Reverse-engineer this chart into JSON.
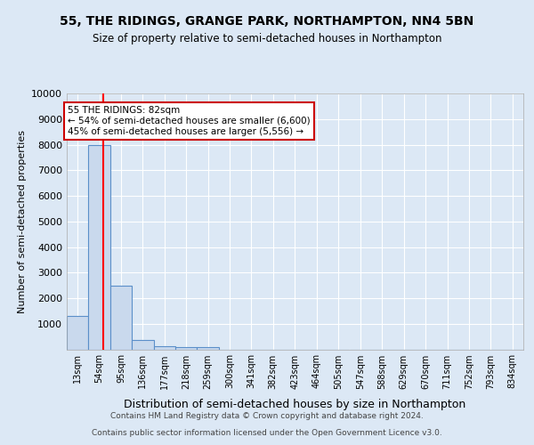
{
  "title1": "55, THE RIDINGS, GRANGE PARK, NORTHAMPTON, NN4 5BN",
  "title2": "Size of property relative to semi-detached houses in Northampton",
  "xlabel": "Distribution of semi-detached houses by size in Northampton",
  "ylabel": "Number of semi-detached properties",
  "footnote1": "Contains HM Land Registry data © Crown copyright and database right 2024.",
  "footnote2": "Contains public sector information licensed under the Open Government Licence v3.0.",
  "bar_labels": [
    "13sqm",
    "54sqm",
    "95sqm",
    "136sqm",
    "177sqm",
    "218sqm",
    "259sqm",
    "300sqm",
    "341sqm",
    "382sqm",
    "423sqm",
    "464sqm",
    "505sqm",
    "547sqm",
    "588sqm",
    "629sqm",
    "670sqm",
    "711sqm",
    "752sqm",
    "793sqm",
    "834sqm"
  ],
  "bar_values": [
    1300,
    8000,
    2500,
    380,
    130,
    100,
    100,
    0,
    0,
    0,
    0,
    0,
    0,
    0,
    0,
    0,
    0,
    0,
    0,
    0,
    0
  ],
  "bar_color": "#c9d9ed",
  "bar_edge_color": "#5b8fc9",
  "bin_edges": [
    13,
    54,
    95,
    136,
    177,
    218,
    259,
    300,
    341,
    382,
    423,
    464,
    505,
    547,
    588,
    629,
    670,
    711,
    752,
    793,
    834
  ],
  "annotation_text": "55 THE RIDINGS: 82sqm\n← 54% of semi-detached houses are smaller (6,600)\n45% of semi-detached houses are larger (5,556) →",
  "annotation_box_color": "#ffffff",
  "annotation_box_edge": "#cc0000",
  "ylim": [
    0,
    10000
  ],
  "yticks": [
    0,
    1000,
    2000,
    3000,
    4000,
    5000,
    6000,
    7000,
    8000,
    9000,
    10000
  ],
  "background_color": "#dce8f5",
  "grid_color": "#ffffff",
  "property_size": 82,
  "bin_width": 41
}
